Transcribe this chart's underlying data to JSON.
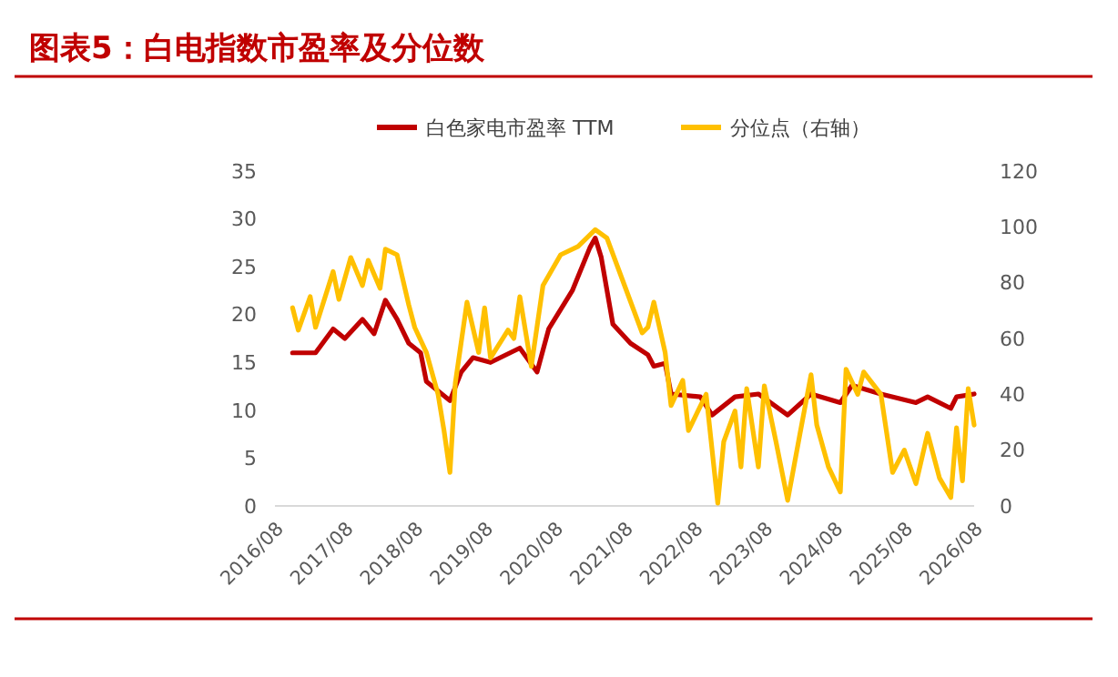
{
  "chart_data": {
    "type": "line",
    "title": "图表5：白电指数市盈率及分位数",
    "xlim": [
      "2016-08",
      "2026-08"
    ],
    "xticks": [
      {
        "value": "2016-08",
        "label": "2016/08"
      },
      {
        "value": "2017-08",
        "label": "2017/08"
      },
      {
        "value": "2018-08",
        "label": "2018/08"
      },
      {
        "value": "2019-08",
        "label": "2019/08"
      },
      {
        "value": "2020-08",
        "label": "2020/08"
      },
      {
        "value": "2021-08",
        "label": "2021/08"
      },
      {
        "value": "2022-08",
        "label": "2022/08"
      },
      {
        "value": "2023-08",
        "label": "2023/08"
      },
      {
        "value": "2024-08",
        "label": "2024/08"
      },
      {
        "value": "2025-08",
        "label": "2025/08"
      },
      {
        "value": "2026-08",
        "label": "2026/08"
      }
    ],
    "ylim": [
      0,
      35
    ],
    "yticks": [
      0,
      5,
      10,
      15,
      20,
      25,
      30,
      35
    ],
    "y2lim": [
      0,
      120
    ],
    "y2ticks": [
      0,
      20,
      40,
      60,
      80,
      100,
      120
    ],
    "grid": false,
    "legend": "top",
    "marker": "none",
    "line_style": "solid",
    "series": [
      {
        "name": "白色家电市盈率 TTM",
        "color": "#c00000",
        "x": [
          "2016-11",
          "2017-03",
          "2017-06",
          "2017-08",
          "2017-11",
          "2018-01",
          "2018-03",
          "2018-05",
          "2018-07",
          "2018-09",
          "2018-10",
          "2019-02",
          "2019-04",
          "2019-06",
          "2019-09",
          "2020-02",
          "2020-05",
          "2020-07",
          "2020-11",
          "2021-02",
          "2021-03",
          "2021-04",
          "2021-06",
          "2021-09",
          "2021-12",
          "2022-01",
          "2022-03",
          "2022-04",
          "2022-09",
          "2022-11",
          "2023-03",
          "2023-07",
          "2023-12",
          "2024-04",
          "2024-09",
          "2024-11",
          "2025-04",
          "2025-10",
          "2025-12",
          "2026-04",
          "2026-05",
          "2026-08"
        ],
        "values": [
          16,
          16,
          18.5,
          17.5,
          19.5,
          18,
          21.5,
          19.5,
          17,
          16,
          13,
          11,
          14,
          15.5,
          15,
          16.5,
          14,
          18.5,
          22.5,
          27,
          28,
          26,
          19,
          17,
          15.8,
          14.6,
          14.9,
          11.7,
          11.4,
          9.5,
          11.4,
          11.7,
          9.5,
          11.7,
          10.8,
          12.6,
          11.7,
          10.8,
          11.4,
          10.2,
          11.4,
          11.7
        ]
      },
      {
        "name": "分位点（右轴）",
        "color": "#ffc000",
        "axis": "y2",
        "x": [
          "2016-11",
          "2016-12",
          "2017-02",
          "2017-03",
          "2017-06",
          "2017-07",
          "2017-09",
          "2017-11",
          "2017-12",
          "2018-02",
          "2018-03",
          "2018-05",
          "2018-07",
          "2018-08",
          "2018-10",
          "2018-12",
          "2019-01",
          "2019-02",
          "2019-03",
          "2019-05",
          "2019-07",
          "2019-08",
          "2019-09",
          "2019-12",
          "2020-01",
          "2020-02",
          "2020-04",
          "2020-06",
          "2020-09",
          "2020-12",
          "2021-03",
          "2021-05",
          "2021-08",
          "2021-11",
          "2021-12",
          "2022-01",
          "2022-03",
          "2022-04",
          "2022-06",
          "2022-07",
          "2022-10",
          "2022-12",
          "2023-01",
          "2023-03",
          "2023-04",
          "2023-05",
          "2023-07",
          "2023-08",
          "2023-10",
          "2023-12",
          "2024-02",
          "2024-04",
          "2024-05",
          "2024-07",
          "2024-09",
          "2024-10",
          "2024-12",
          "2025-01",
          "2025-04",
          "2025-06",
          "2025-08",
          "2025-10",
          "2025-12",
          "2026-02",
          "2026-04",
          "2026-05",
          "2026-06",
          "2026-07",
          "2026-08"
        ],
        "values": [
          71,
          63,
          75,
          64,
          84,
          74,
          89,
          79,
          88,
          78,
          92,
          90,
          72,
          64,
          55,
          40,
          27,
          12,
          44,
          73,
          55,
          71,
          53,
          63,
          60,
          75,
          50,
          79,
          90,
          93,
          99,
          96,
          79,
          62,
          64,
          73,
          55,
          36,
          45,
          27,
          40,
          1,
          23,
          34,
          14,
          42,
          14,
          43,
          23,
          2,
          25,
          47,
          29,
          14,
          5,
          49,
          40,
          48,
          40,
          12,
          20,
          8,
          26,
          10,
          3,
          28,
          9,
          42,
          29
        ]
      }
    ]
  }
}
